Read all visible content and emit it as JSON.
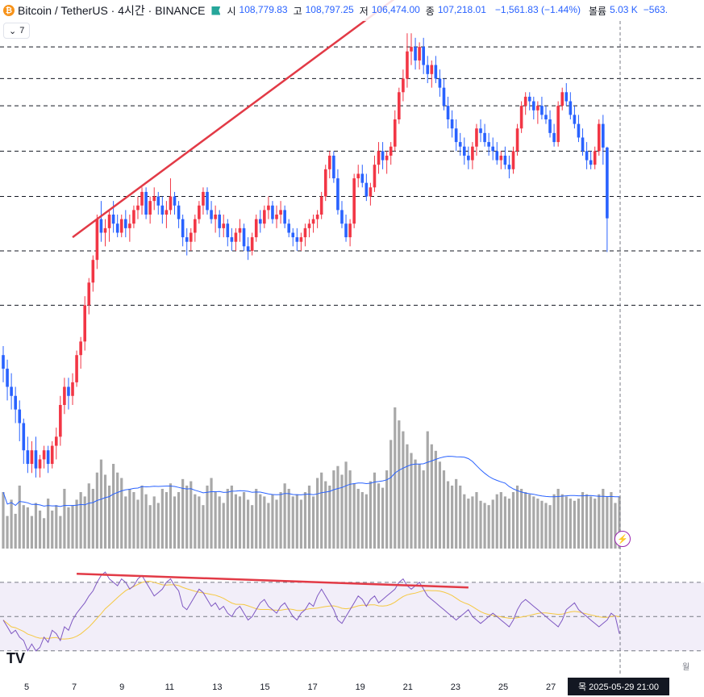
{
  "header": {
    "coin_badge": "₿",
    "title": "Bitcoin / TetherUS · 4시간 · BINANCE",
    "open_label": "시",
    "open": "108,779.83",
    "high_label": "고",
    "high": "108,797.25",
    "low_label": "저",
    "low": "106,474.00",
    "close_label": "종",
    "close": "107,218.01",
    "change": "−1,561.83 (−1.44%)",
    "volume_label": "볼륨",
    "volume": "5.03 K",
    "volume_ma": "−563."
  },
  "indicators_toggle": {
    "count": "7",
    "icon": "chevron-down-icon"
  },
  "bottom_axis": {
    "dates": [
      "5",
      "7",
      "9",
      "11",
      "13",
      "15",
      "17",
      "19",
      "21",
      "23",
      "25",
      "27"
    ],
    "cursor_label": "목 2025-05-29   21:00",
    "cut_label": "월"
  },
  "logo": "TV",
  "colors": {
    "up": "#f23645",
    "down": "#2962ff",
    "trend": "#e23a46",
    "rsi": "#7e57c2",
    "rsi_ma": "#f5c842",
    "vol_ma": "#2962ff",
    "volume": "#a8a8a8"
  },
  "chart_data": {
    "type": "candlestick",
    "symbol": "BTCUSDT",
    "interval": "4h",
    "price_ylim": [
      101000,
      111500
    ],
    "candle_count": 152,
    "candles": [
      [
        104200,
        104400,
        103600,
        103900
      ],
      [
        103900,
        104100,
        103200,
        103500
      ],
      [
        103500,
        103800,
        103000,
        103300
      ],
      [
        103300,
        103500,
        102700,
        103000
      ],
      [
        103000,
        103200,
        102300,
        102700
      ],
      [
        102700,
        102800,
        101800,
        102100
      ],
      [
        102100,
        102400,
        101600,
        101800
      ],
      [
        101800,
        102300,
        101600,
        102100
      ],
      [
        102100,
        102400,
        101500,
        101700
      ],
      [
        101700,
        102000,
        101500,
        101900
      ],
      [
        101900,
        102200,
        101700,
        102100
      ],
      [
        102100,
        102200,
        101600,
        101800
      ],
      [
        101800,
        102300,
        101700,
        102200
      ],
      [
        102200,
        102600,
        101900,
        102400
      ],
      [
        102400,
        103300,
        102200,
        103100
      ],
      [
        103100,
        103700,
        102900,
        103500
      ],
      [
        103500,
        103700,
        103000,
        103300
      ],
      [
        103300,
        103800,
        103100,
        103600
      ],
      [
        103600,
        104300,
        103500,
        104200
      ],
      [
        104200,
        104600,
        103900,
        104500
      ],
      [
        104500,
        105500,
        104300,
        105300
      ],
      [
        105300,
        105900,
        105100,
        105800
      ],
      [
        105800,
        106400,
        105600,
        106300
      ],
      [
        106300,
        107300,
        106100,
        107200
      ],
      [
        107200,
        107600,
        106700,
        106900
      ],
      [
        106900,
        107200,
        106600,
        107000
      ],
      [
        107000,
        107400,
        106700,
        107300
      ],
      [
        107300,
        107600,
        106900,
        107100
      ],
      [
        107100,
        107300,
        106800,
        106900
      ],
      [
        106900,
        107300,
        106800,
        107200
      ],
      [
        107200,
        107400,
        106800,
        107000
      ],
      [
        107000,
        107300,
        106700,
        107100
      ],
      [
        107100,
        107500,
        107000,
        107400
      ],
      [
        107400,
        107700,
        107200,
        107500
      ],
      [
        107500,
        107900,
        107300,
        107800
      ],
      [
        107800,
        107900,
        107200,
        107300
      ],
      [
        107300,
        107700,
        107100,
        107600
      ],
      [
        107600,
        107900,
        107400,
        107700
      ],
      [
        107700,
        107800,
        107300,
        107500
      ],
      [
        107500,
        107700,
        107100,
        107300
      ],
      [
        107300,
        107600,
        107000,
        107400
      ],
      [
        107400,
        108100,
        107300,
        107700
      ],
      [
        107700,
        107800,
        107300,
        107500
      ],
      [
        107500,
        107600,
        107000,
        107200
      ],
      [
        107200,
        107300,
        106600,
        106800
      ],
      [
        106800,
        107000,
        106400,
        106700
      ],
      [
        106700,
        107000,
        106500,
        106900
      ],
      [
        106900,
        107300,
        106700,
        107200
      ],
      [
        107200,
        107600,
        107100,
        107500
      ],
      [
        107500,
        107900,
        107300,
        107800
      ],
      [
        107800,
        107900,
        107300,
        107400
      ],
      [
        107400,
        107600,
        107100,
        107200
      ],
      [
        107200,
        107500,
        106900,
        107300
      ],
      [
        107300,
        107400,
        106800,
        107000
      ],
      [
        107000,
        107300,
        106800,
        107100
      ],
      [
        107100,
        107200,
        106600,
        106800
      ],
      [
        106800,
        107000,
        106500,
        106700
      ],
      [
        106700,
        107000,
        106500,
        106900
      ],
      [
        106900,
        107200,
        106700,
        107000
      ],
      [
        107000,
        107100,
        106500,
        106600
      ],
      [
        106600,
        106800,
        106300,
        106500
      ],
      [
        106500,
        106900,
        106400,
        106800
      ],
      [
        106800,
        107300,
        106700,
        107200
      ],
      [
        107200,
        107400,
        106900,
        107100
      ],
      [
        107100,
        107500,
        107000,
        107400
      ],
      [
        107400,
        107700,
        107200,
        107500
      ],
      [
        107500,
        107600,
        107100,
        107200
      ],
      [
        107200,
        107500,
        107000,
        107300
      ],
      [
        107300,
        107600,
        107100,
        107400
      ],
      [
        107400,
        107500,
        107000,
        107100
      ],
      [
        107100,
        107200,
        106800,
        106900
      ],
      [
        106900,
        107000,
        106600,
        106800
      ],
      [
        106800,
        107000,
        106500,
        106700
      ],
      [
        106700,
        106900,
        106500,
        106800
      ],
      [
        106800,
        107100,
        106600,
        107000
      ],
      [
        107000,
        107200,
        106800,
        107100
      ],
      [
        107100,
        107300,
        106900,
        107200
      ],
      [
        107200,
        107400,
        107000,
        107300
      ],
      [
        107300,
        107800,
        107200,
        107700
      ],
      [
        107700,
        108400,
        107600,
        108300
      ],
      [
        108300,
        108700,
        108100,
        108600
      ],
      [
        108600,
        108700,
        108000,
        108100
      ],
      [
        108100,
        108300,
        107300,
        107400
      ],
      [
        107400,
        107600,
        107000,
        107100
      ],
      [
        107100,
        107300,
        106700,
        106800
      ],
      [
        106800,
        107200,
        106600,
        107100
      ],
      [
        107100,
        108200,
        107000,
        108100
      ],
      [
        108100,
        108400,
        107900,
        108200
      ],
      [
        108200,
        108400,
        107900,
        108000
      ],
      [
        108000,
        108200,
        107600,
        107700
      ],
      [
        107700,
        108000,
        107500,
        107900
      ],
      [
        107900,
        108600,
        107800,
        108400
      ],
      [
        108400,
        108900,
        108200,
        108700
      ],
      [
        108700,
        108900,
        108300,
        108500
      ],
      [
        108500,
        108700,
        108200,
        108600
      ],
      [
        108600,
        108900,
        108400,
        108800
      ],
      [
        108800,
        109600,
        108700,
        109400
      ],
      [
        109400,
        110100,
        109300,
        110000
      ],
      [
        110000,
        110500,
        109800,
        110300
      ],
      [
        110300,
        111300,
        110100,
        110900
      ],
      [
        110900,
        111300,
        110600,
        111000
      ],
      [
        111000,
        111200,
        110500,
        110700
      ],
      [
        110700,
        111100,
        110500,
        111000
      ],
      [
        111000,
        111200,
        110400,
        110600
      ],
      [
        110600,
        110800,
        110200,
        110400
      ],
      [
        110400,
        110700,
        110100,
        110600
      ],
      [
        110600,
        110800,
        110200,
        110300
      ],
      [
        110300,
        110500,
        109900,
        110100
      ],
      [
        110100,
        110300,
        109600,
        109700
      ],
      [
        109700,
        109900,
        109200,
        109400
      ],
      [
        109400,
        109600,
        109000,
        109200
      ],
      [
        109200,
        109400,
        108700,
        108900
      ],
      [
        108900,
        109100,
        108600,
        108800
      ],
      [
        108800,
        109000,
        108400,
        108600
      ],
      [
        108600,
        108800,
        108300,
        108500
      ],
      [
        108500,
        108900,
        108300,
        108800
      ],
      [
        108800,
        109300,
        108600,
        109200
      ],
      [
        109200,
        109400,
        108900,
        109100
      ],
      [
        109100,
        109300,
        108800,
        108900
      ],
      [
        108900,
        109100,
        108600,
        108800
      ],
      [
        108800,
        109000,
        108500,
        108700
      ],
      [
        108700,
        108900,
        108400,
        108500
      ],
      [
        108500,
        108700,
        108300,
        108600
      ],
      [
        108600,
        108800,
        108300,
        108400
      ],
      [
        108400,
        108600,
        108100,
        108300
      ],
      [
        108300,
        108800,
        108200,
        108700
      ],
      [
        108700,
        109300,
        108600,
        109200
      ],
      [
        109200,
        109800,
        109100,
        109700
      ],
      [
        109700,
        110000,
        109500,
        109900
      ],
      [
        109900,
        110000,
        109600,
        109800
      ],
      [
        109800,
        109900,
        109400,
        109600
      ],
      [
        109600,
        109800,
        109300,
        109700
      ],
      [
        109700,
        109900,
        109400,
        109500
      ],
      [
        109500,
        109700,
        109300,
        109400
      ],
      [
        109400,
        109600,
        109000,
        109100
      ],
      [
        109100,
        109300,
        108800,
        108900
      ],
      [
        108900,
        109800,
        108800,
        109700
      ],
      [
        109700,
        110100,
        109600,
        110000
      ],
      [
        110000,
        110200,
        109700,
        109800
      ],
      [
        109800,
        110000,
        109400,
        109500
      ],
      [
        109500,
        109700,
        109200,
        109300
      ],
      [
        109300,
        109500,
        108900,
        109000
      ],
      [
        109000,
        109200,
        108600,
        108700
      ],
      [
        108700,
        108900,
        108300,
        108500
      ],
      [
        108500,
        108700,
        108300,
        108400
      ],
      [
        108400,
        108800,
        108300,
        108700
      ],
      [
        108700,
        109400,
        108600,
        109300
      ],
      [
        109300,
        109500,
        108400,
        108779
      ],
      [
        108779,
        108797,
        106474,
        107218
      ]
    ],
    "volume": [
      52,
      30,
      45,
      32,
      58,
      40,
      38,
      30,
      42,
      35,
      28,
      46,
      35,
      40,
      30,
      55,
      38,
      40,
      45,
      52,
      48,
      60,
      55,
      70,
      82,
      68,
      58,
      78,
      70,
      65,
      48,
      55,
      52,
      45,
      58,
      50,
      40,
      48,
      42,
      55,
      52,
      60,
      48,
      52,
      64,
      58,
      62,
      50,
      48,
      40,
      58,
      65,
      52,
      48,
      42,
      55,
      58,
      50,
      48,
      52,
      45,
      40,
      55,
      50,
      48,
      42,
      50,
      45,
      52,
      60,
      55,
      48,
      50,
      45,
      52,
      58,
      48,
      65,
      70,
      62,
      58,
      72,
      76,
      68,
      80,
      72,
      60,
      55,
      52,
      50,
      62,
      70,
      60,
      56,
      72,
      100,
      130,
      118,
      108,
      96,
      88,
      82,
      78,
      72,
      108,
      96,
      90,
      80,
      72,
      62,
      58,
      64,
      58,
      50,
      46,
      48,
      52,
      44,
      42,
      40,
      45,
      50,
      52,
      48,
      46,
      52,
      58,
      55,
      52,
      50,
      48,
      46,
      44,
      42,
      40,
      50,
      55,
      50,
      48,
      46,
      44,
      46,
      52,
      50,
      48,
      46,
      50,
      55,
      48,
      52,
      42,
      48
    ],
    "rsi_ylim": [
      20,
      85
    ],
    "rsi_bands": [
      30,
      70
    ],
    "rsi_mid": 50,
    "rsi": [
      48,
      44,
      40,
      42,
      38,
      36,
      30,
      34,
      30,
      32,
      38,
      35,
      42,
      40,
      36,
      44,
      42,
      48,
      52,
      55,
      58,
      62,
      65,
      70,
      74,
      76,
      72,
      70,
      68,
      72,
      70,
      66,
      68,
      72,
      74,
      70,
      66,
      62,
      64,
      66,
      70,
      72,
      68,
      65,
      56,
      54,
      58,
      62,
      66,
      64,
      60,
      56,
      58,
      54,
      56,
      52,
      50,
      54,
      56,
      52,
      48,
      50,
      54,
      58,
      60,
      56,
      54,
      52,
      56,
      58,
      54,
      50,
      48,
      52,
      54,
      58,
      56,
      62,
      66,
      62,
      58,
      54,
      48,
      46,
      50,
      54,
      58,
      62,
      60,
      56,
      60,
      62,
      58,
      60,
      62,
      64,
      66,
      70,
      72,
      68,
      66,
      68,
      70,
      66,
      62,
      60,
      58,
      56,
      54,
      52,
      50,
      48,
      50,
      52,
      54,
      50,
      48,
      46,
      48,
      50,
      52,
      50,
      48,
      46,
      44,
      48,
      54,
      58,
      60,
      58,
      56,
      54,
      52,
      50,
      48,
      46,
      44,
      48,
      54,
      56,
      58,
      54,
      52,
      50,
      48,
      46,
      44,
      46,
      48,
      52,
      50,
      40
    ],
    "trendlines": [
      {
        "pane": "price",
        "from": [
          17,
          106800
        ],
        "to": [
          104,
          112600
        ]
      },
      {
        "pane": "rsi",
        "from": [
          18,
          75
        ],
        "to": [
          114,
          67
        ]
      }
    ],
    "horizontal_levels": [
      111000,
      110300,
      109700,
      108700,
      107700,
      106500,
      105300
    ]
  }
}
